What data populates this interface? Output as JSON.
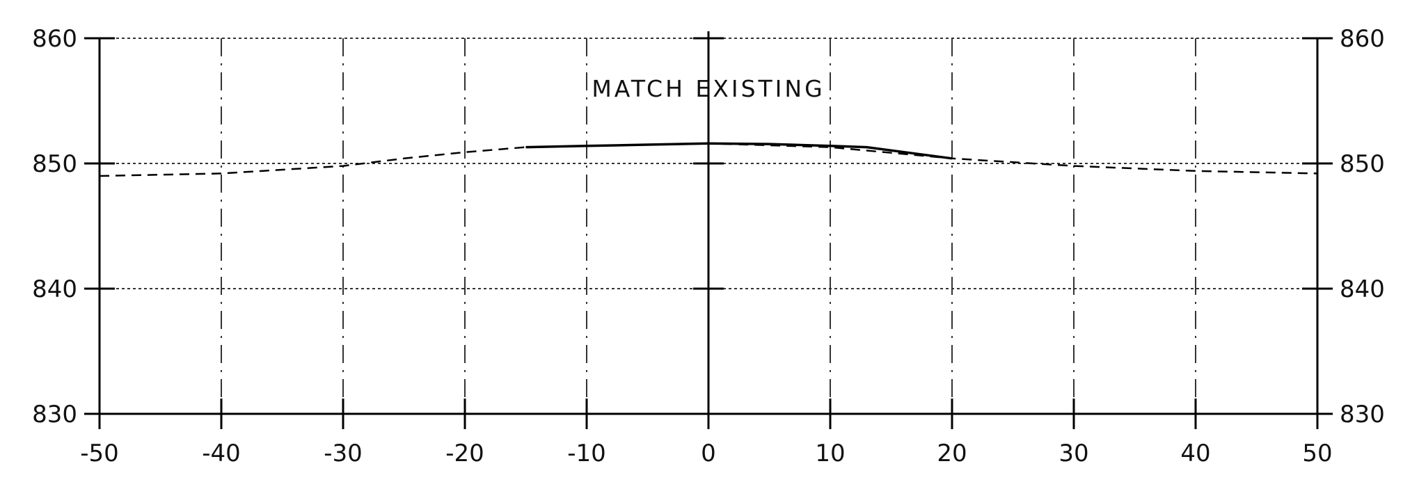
{
  "chart_data": {
    "type": "line",
    "title": "",
    "xlabel": "",
    "ylabel": "",
    "xlim": [
      -50,
      50
    ],
    "ylim": [
      830,
      860
    ],
    "x_ticks": [
      -50,
      -40,
      -30,
      -20,
      -10,
      0,
      10,
      20,
      30,
      40,
      50
    ],
    "x_tick_labels": [
      "-50",
      "-40",
      "-30",
      "-20",
      "-10",
      "0",
      "10",
      "20",
      "30",
      "40",
      "50"
    ],
    "y_ticks": [
      830,
      840,
      850,
      860
    ],
    "y_tick_labels_left": [
      "830",
      "840",
      "850",
      "860"
    ],
    "y_tick_labels_right": [
      "830",
      "840",
      "850",
      "860"
    ],
    "grid": true,
    "annotation": {
      "text": "MATCH EXISTING",
      "x": 0,
      "y": 856
    },
    "series": [
      {
        "style": "dashed",
        "x": [
          -50,
          -40,
          -30,
          -25,
          -20,
          -15,
          -10,
          0,
          10,
          20,
          30,
          40,
          50
        ],
        "y": [
          849.0,
          849.2,
          849.8,
          850.4,
          850.9,
          851.3,
          851.4,
          851.6,
          851.3,
          850.4,
          849.8,
          849.4,
          849.2
        ]
      },
      {
        "style": "solid",
        "x": [
          -15,
          -10,
          -5,
          0,
          5,
          10,
          13,
          20
        ],
        "y": [
          851.3,
          851.4,
          851.5,
          851.6,
          851.55,
          851.4,
          851.3,
          850.4
        ]
      }
    ]
  }
}
